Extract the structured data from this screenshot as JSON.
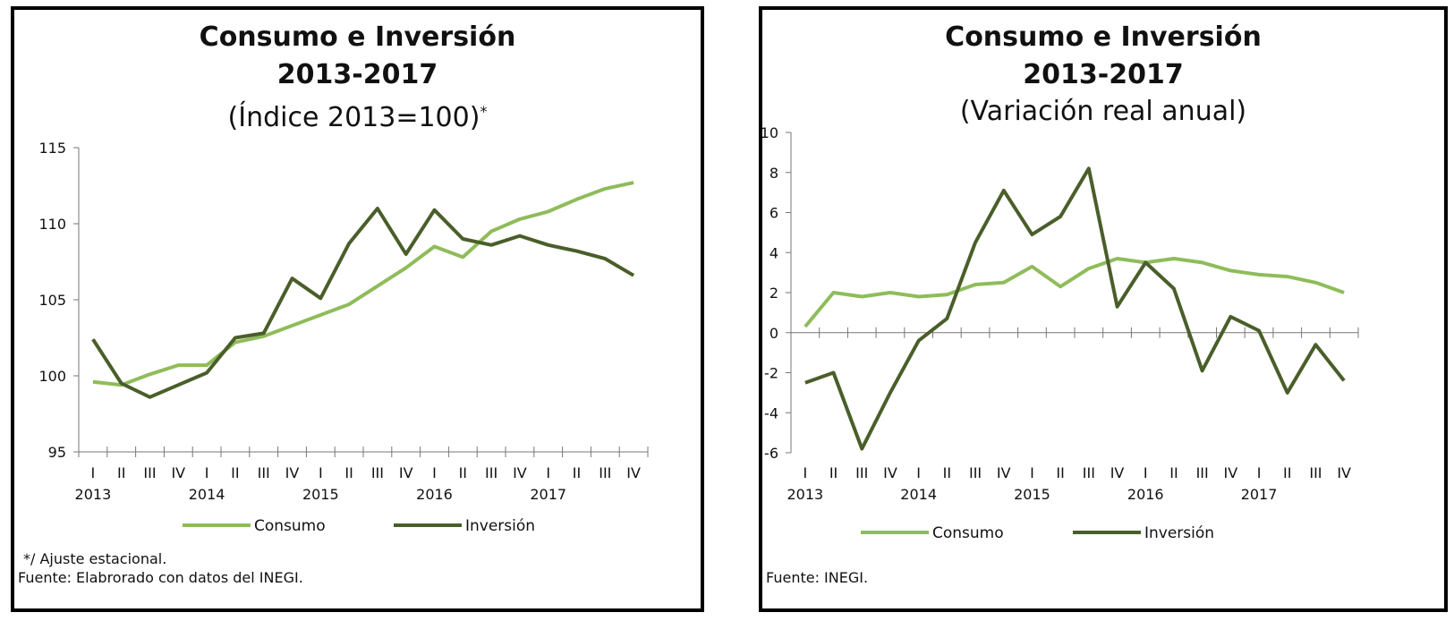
{
  "left": {
    "title_line1": "Consumo e Inversión",
    "title_line2": "2013-2017",
    "subtitle": "(Índice 2013=100)",
    "subtitle_sup": "*",
    "footnote": "*/ Ajuste estacional.",
    "source": "Fuente: Elabrorado con datos del INEGI."
  },
  "right": {
    "title_line1": "Consumo e Inversión",
    "title_line2": "2013-2017",
    "subtitle": "(Variación real anual)",
    "source": "Fuente: INEGI."
  },
  "colors": {
    "consumo": "#8fbc5a",
    "inversion": "#4a5e2a",
    "axis": "#777777"
  },
  "chart_data": [
    {
      "type": "line",
      "categories": [
        "I",
        "II",
        "III",
        "IV",
        "I",
        "II",
        "III",
        "IV",
        "I",
        "II",
        "III",
        "IV",
        "I",
        "II",
        "III",
        "IV",
        "I",
        "II",
        "III",
        "IV"
      ],
      "years": [
        "2013",
        "2014",
        "2015",
        "2016",
        "2017"
      ],
      "ylim": [
        95,
        115
      ],
      "yticks": [
        95,
        100,
        105,
        110,
        115
      ],
      "series": [
        {
          "name": "Consumo",
          "values": [
            99.6,
            99.4,
            100.1,
            100.7,
            100.7,
            102.2,
            102.6,
            103.3,
            104.0,
            104.7,
            105.9,
            107.1,
            108.5,
            107.8,
            109.5,
            110.3,
            110.8,
            111.6,
            112.3,
            112.7
          ]
        },
        {
          "name": "Inversión",
          "values": [
            102.4,
            99.5,
            98.6,
            99.4,
            100.2,
            102.5,
            102.8,
            106.4,
            105.1,
            108.7,
            111.0,
            108.0,
            110.9,
            109.0,
            108.6,
            109.2,
            108.6,
            108.2,
            107.7,
            106.6
          ]
        }
      ]
    },
    {
      "type": "line",
      "categories": [
        "I",
        "II",
        "III",
        "IV",
        "I",
        "II",
        "III",
        "IV",
        "I",
        "II",
        "III",
        "IV",
        "I",
        "II",
        "III",
        "IV",
        "I",
        "II",
        "III",
        "IV"
      ],
      "years": [
        "2013",
        "2014",
        "2015",
        "2016",
        "2017"
      ],
      "ylim": [
        -6,
        10
      ],
      "yticks": [
        -6,
        -4,
        -2,
        0,
        2,
        4,
        6,
        8,
        10
      ],
      "series": [
        {
          "name": "Consumo",
          "values": [
            0.3,
            2.0,
            1.8,
            2.0,
            1.8,
            1.9,
            2.4,
            2.5,
            3.3,
            2.3,
            3.2,
            3.7,
            3.5,
            3.7,
            3.5,
            3.1,
            2.9,
            2.8,
            2.5,
            2.0
          ]
        },
        {
          "name": "Inversión",
          "values": [
            -2.5,
            -2.0,
            -5.8,
            -3.0,
            -0.4,
            0.7,
            4.5,
            7.1,
            4.9,
            5.8,
            8.2,
            1.3,
            3.5,
            2.2,
            -1.9,
            0.8,
            0.1,
            -3.0,
            -0.6,
            -2.4
          ]
        }
      ]
    }
  ]
}
